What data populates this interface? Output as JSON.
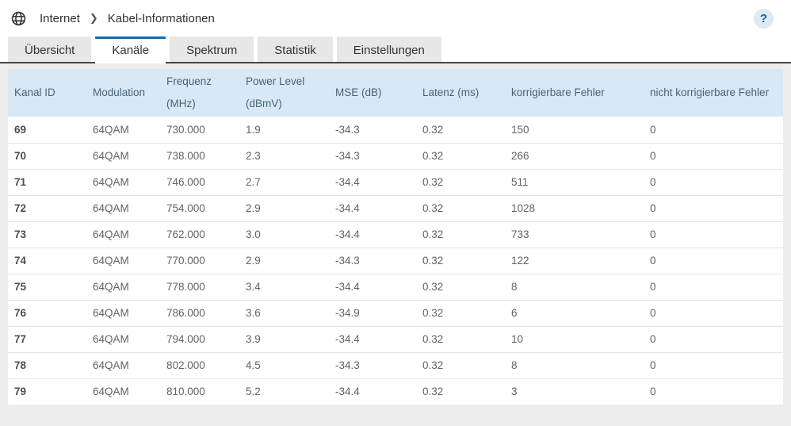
{
  "header": {
    "breadcrumb": {
      "section": "Internet",
      "separator": "❯",
      "page": "Kabel-Informationen"
    },
    "help_label": "?",
    "icons": {
      "globe": "globe-icon",
      "help": "question-mark-icon"
    }
  },
  "tabs": {
    "items": [
      {
        "label": "Übersicht",
        "active": false
      },
      {
        "label": "Kanäle",
        "active": true
      },
      {
        "label": "Spektrum",
        "active": false
      },
      {
        "label": "Statistik",
        "active": false
      },
      {
        "label": "Einstellungen",
        "active": false
      }
    ]
  },
  "table": {
    "columns": [
      {
        "key": "kanal_id",
        "label": "Kanal ID"
      },
      {
        "key": "modulation",
        "label": "Modulation"
      },
      {
        "key": "frequenz",
        "label": "Frequenz (MHz)"
      },
      {
        "key": "power_level",
        "label": "Power Level (dBmV)"
      },
      {
        "key": "mse",
        "label": "MSE (dB)"
      },
      {
        "key": "latenz",
        "label": "Latenz (ms)"
      },
      {
        "key": "korrigierbare",
        "label": "korrigierbare Fehler"
      },
      {
        "key": "nicht_korrigierbare",
        "label": "nicht korrigierbare Fehler"
      }
    ],
    "rows": [
      {
        "kanal_id": "69",
        "modulation": "64QAM",
        "frequenz": "730.000",
        "power_level": "1.9",
        "mse": "-34.3",
        "latenz": "0.32",
        "korrigierbare": "150",
        "nicht_korrigierbare": "0"
      },
      {
        "kanal_id": "70",
        "modulation": "64QAM",
        "frequenz": "738.000",
        "power_level": "2.3",
        "mse": "-34.3",
        "latenz": "0.32",
        "korrigierbare": "266",
        "nicht_korrigierbare": "0"
      },
      {
        "kanal_id": "71",
        "modulation": "64QAM",
        "frequenz": "746.000",
        "power_level": "2.7",
        "mse": "-34.4",
        "latenz": "0.32",
        "korrigierbare": "511",
        "nicht_korrigierbare": "0"
      },
      {
        "kanal_id": "72",
        "modulation": "64QAM",
        "frequenz": "754.000",
        "power_level": "2.9",
        "mse": "-34.4",
        "latenz": "0.32",
        "korrigierbare": "1028",
        "nicht_korrigierbare": "0"
      },
      {
        "kanal_id": "73",
        "modulation": "64QAM",
        "frequenz": "762.000",
        "power_level": "3.0",
        "mse": "-34.4",
        "latenz": "0.32",
        "korrigierbare": "733",
        "nicht_korrigierbare": "0"
      },
      {
        "kanal_id": "74",
        "modulation": "64QAM",
        "frequenz": "770.000",
        "power_level": "2.9",
        "mse": "-34.3",
        "latenz": "0.32",
        "korrigierbare": "122",
        "nicht_korrigierbare": "0"
      },
      {
        "kanal_id": "75",
        "modulation": "64QAM",
        "frequenz": "778.000",
        "power_level": "3.4",
        "mse": "-34.4",
        "latenz": "0.32",
        "korrigierbare": "8",
        "nicht_korrigierbare": "0"
      },
      {
        "kanal_id": "76",
        "modulation": "64QAM",
        "frequenz": "786.000",
        "power_level": "3.6",
        "mse": "-34.9",
        "latenz": "0.32",
        "korrigierbare": "6",
        "nicht_korrigierbare": "0"
      },
      {
        "kanal_id": "77",
        "modulation": "64QAM",
        "frequenz": "794.000",
        "power_level": "3.9",
        "mse": "-34.4",
        "latenz": "0.32",
        "korrigierbare": "10",
        "nicht_korrigierbare": "0"
      },
      {
        "kanal_id": "78",
        "modulation": "64QAM",
        "frequenz": "802.000",
        "power_level": "4.5",
        "mse": "-34.3",
        "latenz": "0.32",
        "korrigierbare": "8",
        "nicht_korrigierbare": "0"
      },
      {
        "kanal_id": "79",
        "modulation": "64QAM",
        "frequenz": "810.000",
        "power_level": "5.2",
        "mse": "-34.4",
        "latenz": "0.32",
        "korrigierbare": "3",
        "nicht_korrigierbare": "0"
      }
    ]
  },
  "colors": {
    "accent_blue": "#0d6cae",
    "table_header_bg": "#d8e8f4",
    "table_header_text": "#49647a",
    "tab_inactive_bg": "#e7e7e7",
    "tab_divider": "#454545",
    "page_gutter": "#ededed",
    "help_bg": "#ddeaf6",
    "help_fg": "#11609f"
  }
}
